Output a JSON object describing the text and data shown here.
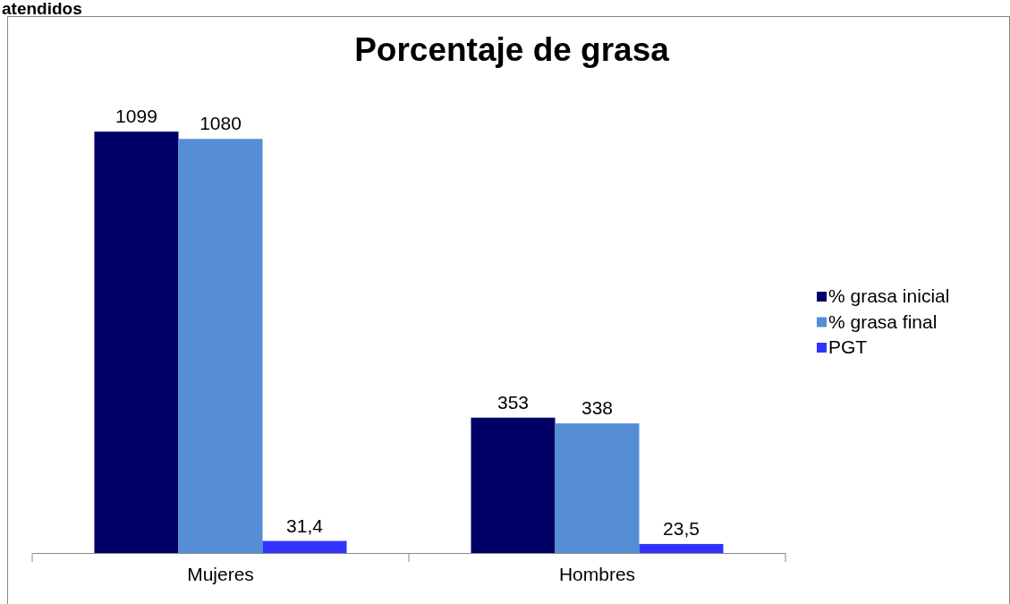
{
  "chart_data": {
    "type": "bar",
    "title": "Porcentaje de grasa",
    "annotations": [
      "atendidos"
    ],
    "categories": [
      "Mujeres",
      "Hombres"
    ],
    "series": [
      {
        "name": "% grasa inicial",
        "color": "#000066",
        "values": [
          1099,
          353
        ],
        "value_labels": [
          "1099",
          "353"
        ]
      },
      {
        "name": "% grasa final",
        "color": "#558ed5",
        "values": [
          1080,
          338
        ],
        "value_labels": [
          "1080",
          "338"
        ]
      },
      {
        "name": "PGT",
        "color": "#3333ff",
        "values": [
          31.4,
          23.5
        ],
        "value_labels": [
          "31,4",
          "23,5"
        ]
      }
    ],
    "legend": "right"
  }
}
